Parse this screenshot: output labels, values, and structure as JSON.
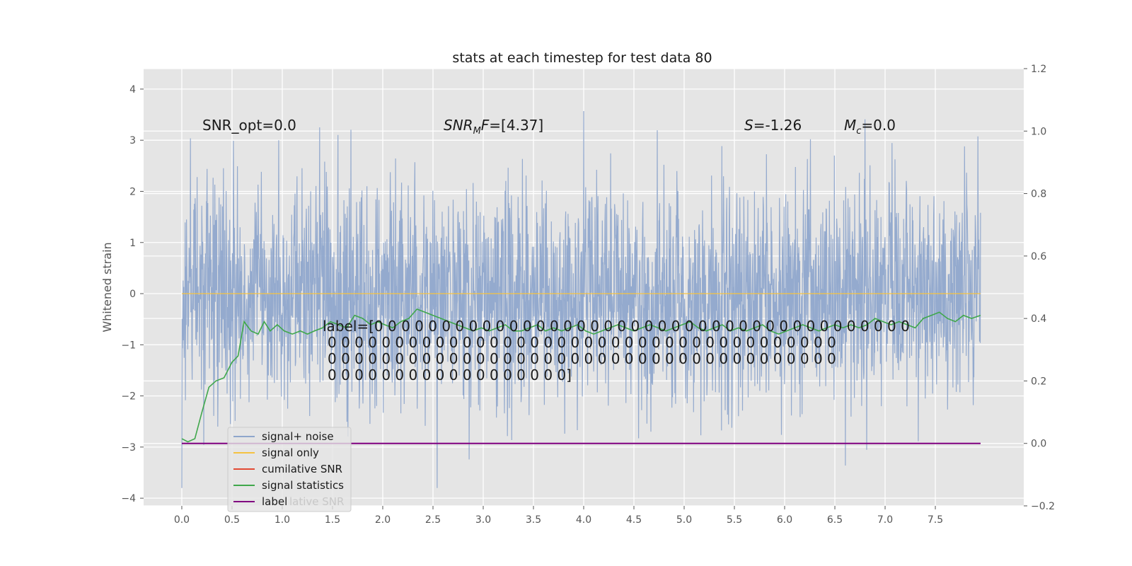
{
  "chart_data": {
    "type": "line",
    "title": "stats at each timestep for test data 80",
    "xlabel": "",
    "ylabel": "Whitened strain",
    "xlim": [
      -0.38,
      8.38
    ],
    "ylim": [
      -4.15,
      4.4
    ],
    "y2lim": [
      -0.2,
      1.2
    ],
    "grid": true,
    "legend_placement": "lower-left",
    "xticks": [
      "0.0",
      "0.5",
      "1.0",
      "1.5",
      "2.0",
      "2.5",
      "3.0",
      "3.5",
      "4.0",
      "4.5",
      "5.0",
      "5.5",
      "6.0",
      "6.5",
      "7.0",
      "7.5"
    ],
    "yticks": [
      "4",
      "3",
      "2",
      "1",
      "0",
      "−1",
      "−2",
      "−3",
      "−4"
    ],
    "y2ticks": [
      "1.2",
      "1.0",
      "0.8",
      "0.6",
      "0.4",
      "0.2",
      "0.0",
      "−0.2"
    ],
    "annotations": {
      "snr_opt": "SNR_opt=0.0",
      "snr_mf": "=[4.37]",
      "s_stat": "=-1.26",
      "mc": "=0.0"
    },
    "label_lines": [
      "label=[0 0 0 0 0 0 0 0 0 0 0 0 0 0 0 0 0 0 0 0 0 0 0 0 0 0 0 0 0 0 0 0 0 0 0 0 0 0 0 0",
      "0 0 0 0 0 0 0 0 0 0 0 0 0 0 0 0 0 0 0 0 0 0 0 0 0 0 0 0 0 0 0 0 0 0 0 0 0 0",
      "0 0 0 0 0 0 0 0 0 0 0 0 0 0 0 0 0 0 0 0 0 0 0 0 0 0 0 0 0 0 0 0 0 0 0 0 0 0",
      "0 0 0 0 0 0 0 0 0 0 0 0 0 0 0 0 0 0]"
    ],
    "series": [
      {
        "name": "signal+ noise",
        "color": "#8fa6cc",
        "style": "dense noise, roughly ±2 with peaks to ±4"
      },
      {
        "name": "signal only",
        "color": "#f5c242",
        "values_x": [
          0,
          7.95
        ],
        "values_y": [
          0,
          0
        ]
      },
      {
        "name": "cumilative SNR",
        "color": "#e24a33"
      },
      {
        "name": "signal statistics",
        "color": "#3fa74b",
        "axis": "right",
        "x": [
          0.0,
          0.06,
          0.13,
          0.2,
          0.27,
          0.34,
          0.42,
          0.5,
          0.56,
          0.62,
          0.69,
          0.76,
          0.82,
          0.88,
          0.95,
          1.02,
          1.1,
          1.18,
          1.25,
          1.32,
          1.4,
          1.48,
          1.56,
          1.64,
          1.72,
          1.8,
          1.88,
          1.95,
          2.02,
          2.1,
          2.18,
          2.26,
          2.34,
          2.42,
          2.5,
          2.58,
          2.66,
          2.74,
          2.82,
          2.9,
          2.98,
          3.06,
          3.14,
          3.22,
          3.3,
          3.38,
          3.46,
          3.54,
          3.62,
          3.7,
          3.78,
          3.86,
          3.94,
          4.02,
          4.1,
          4.18,
          4.26,
          4.34,
          4.42,
          4.5,
          4.58,
          4.66,
          4.74,
          4.82,
          4.9,
          4.98,
          5.06,
          5.14,
          5.22,
          5.3,
          5.38,
          5.46,
          5.54,
          5.62,
          5.7,
          5.78,
          5.86,
          5.94,
          6.02,
          6.1,
          6.18,
          6.26,
          6.34,
          6.42,
          6.5,
          6.58,
          6.66,
          6.74,
          6.82,
          6.9,
          6.98,
          7.06,
          7.14,
          7.22,
          7.3,
          7.38,
          7.46,
          7.54,
          7.62,
          7.7,
          7.78,
          7.86,
          7.95
        ],
        "y": [
          0.015,
          0.005,
          0.015,
          0.1,
          0.18,
          0.2,
          0.21,
          0.26,
          0.28,
          0.39,
          0.36,
          0.35,
          0.39,
          0.36,
          0.38,
          0.36,
          0.35,
          0.36,
          0.35,
          0.36,
          0.37,
          0.39,
          0.38,
          0.37,
          0.41,
          0.4,
          0.38,
          0.39,
          0.38,
          0.37,
          0.39,
          0.4,
          0.43,
          0.42,
          0.41,
          0.4,
          0.39,
          0.38,
          0.37,
          0.36,
          0.37,
          0.36,
          0.37,
          0.38,
          0.36,
          0.36,
          0.37,
          0.38,
          0.36,
          0.37,
          0.36,
          0.37,
          0.38,
          0.36,
          0.35,
          0.36,
          0.37,
          0.38,
          0.37,
          0.36,
          0.37,
          0.38,
          0.37,
          0.36,
          0.37,
          0.38,
          0.39,
          0.37,
          0.36,
          0.37,
          0.38,
          0.36,
          0.37,
          0.36,
          0.37,
          0.38,
          0.36,
          0.35,
          0.36,
          0.37,
          0.38,
          0.37,
          0.36,
          0.37,
          0.38,
          0.37,
          0.38,
          0.37,
          0.38,
          0.4,
          0.39,
          0.38,
          0.39,
          0.38,
          0.37,
          0.4,
          0.41,
          0.42,
          0.4,
          0.39,
          0.41,
          0.4,
          0.41
        ]
      },
      {
        "name": "label",
        "color": "#800080",
        "axis": "right",
        "values_x": [
          0,
          7.95
        ],
        "values_y": [
          0,
          0
        ]
      }
    ],
    "legend": [
      "signal+ noise",
      "signal only",
      "cumilative SNR",
      "signal statistics",
      "label"
    ],
    "legend_overlap_text": "lative SNR"
  }
}
